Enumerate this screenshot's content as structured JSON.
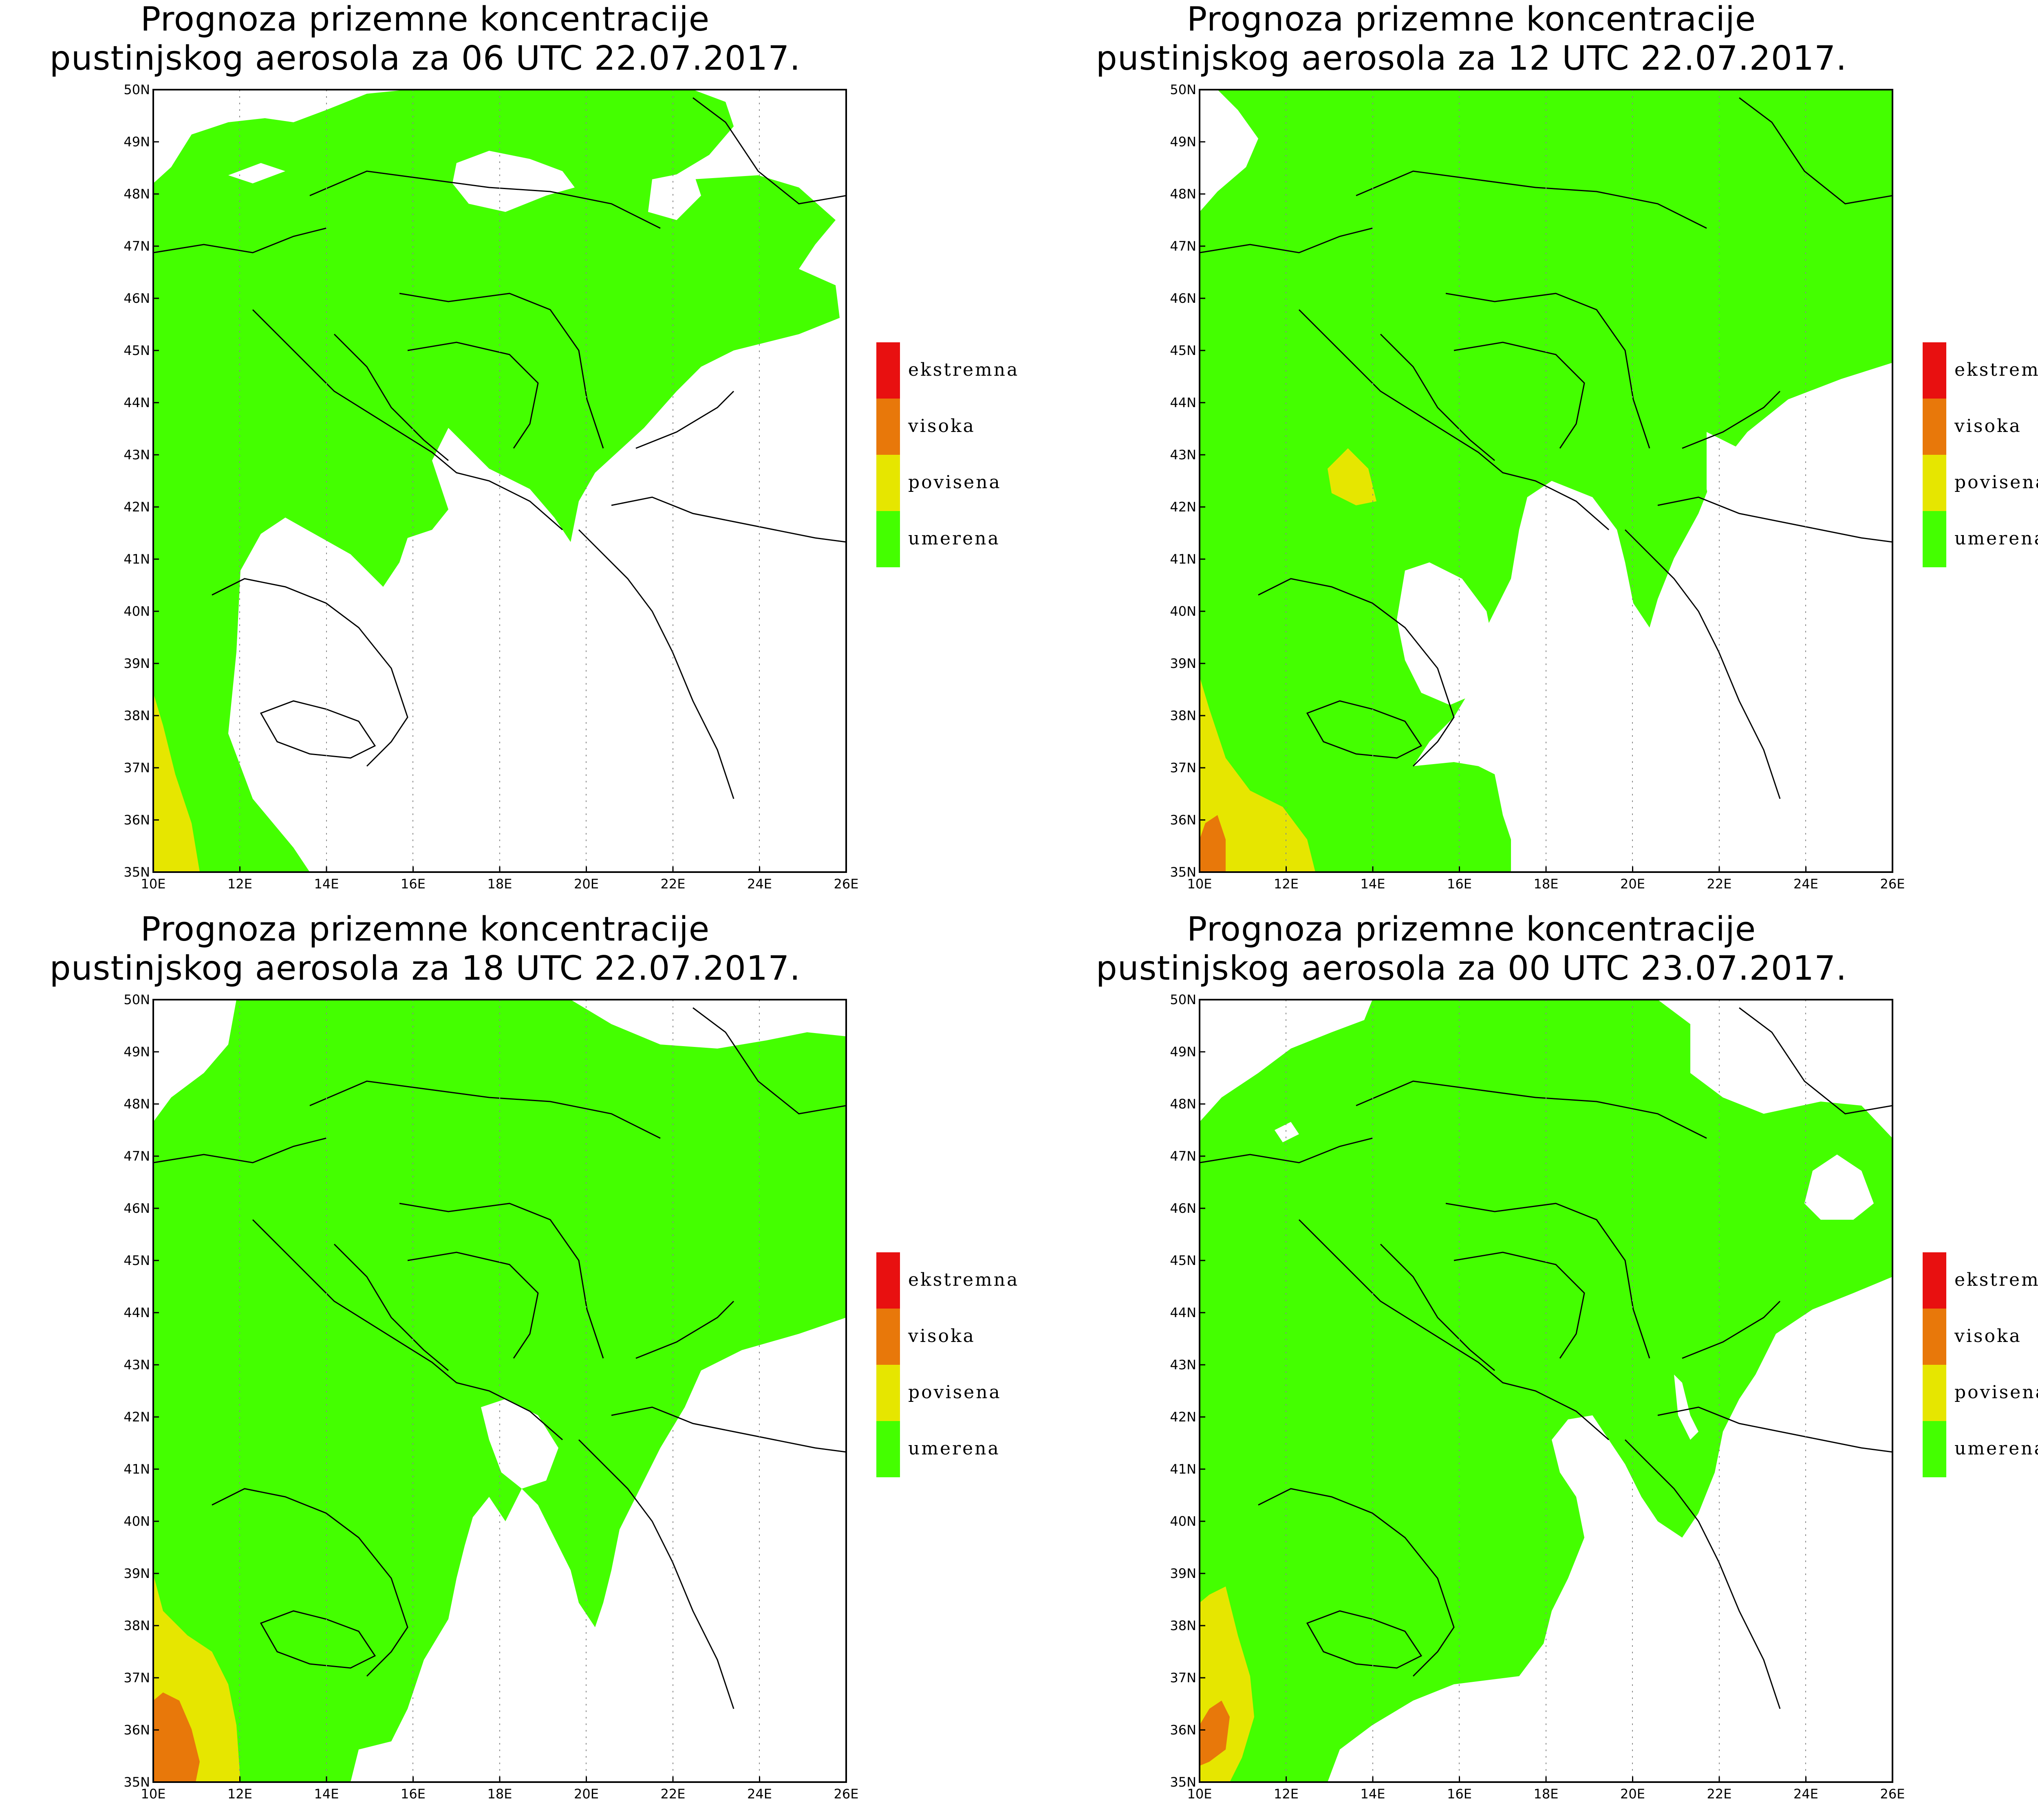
{
  "colors": {
    "ekstremna": "#e81010",
    "visoka": "#e8780a",
    "povisena": "#e6e600",
    "umerena": "#44ff00",
    "background": "#ffffff",
    "border": "#000000"
  },
  "legend": {
    "items": [
      {
        "label": "ekstremna",
        "color": "#e81010"
      },
      {
        "label": "visoka",
        "color": "#e8780a"
      },
      {
        "label": "povisena",
        "color": "#e6e600"
      },
      {
        "label": "umerena",
        "color": "#44ff00"
      }
    ]
  },
  "axes": {
    "lat_labels": [
      "35N",
      "36N",
      "37N",
      "38N",
      "39N",
      "40N",
      "41N",
      "42N",
      "43N",
      "44N",
      "45N",
      "46N",
      "47N",
      "48N",
      "49N",
      "50N"
    ],
    "lon_labels": [
      "10E",
      "12E",
      "14E",
      "16E",
      "18E",
      "20E",
      "22E",
      "24E",
      "26E"
    ],
    "lat_range": [
      35,
      50
    ],
    "lon_range": [
      10,
      26
    ]
  },
  "panels": [
    {
      "title_line1": "Prognoza prizemne koncentracije",
      "title_line2": "pustinjskog aerosola za 06 UTC 22.07.2017."
    },
    {
      "title_line1": "Prognoza prizemne koncentracije",
      "title_line2": "pustinjskog aerosola za 12 UTC 22.07.2017."
    },
    {
      "title_line1": "Prognoza prizemne koncentracije",
      "title_line2": "pustinjskog aerosola za 18 UTC 22.07.2017."
    },
    {
      "title_line1": "Prognoza prizemne koncentracije",
      "title_line2": "pustinjskog aerosola za 00 UTC 23.07.2017."
    }
  ]
}
